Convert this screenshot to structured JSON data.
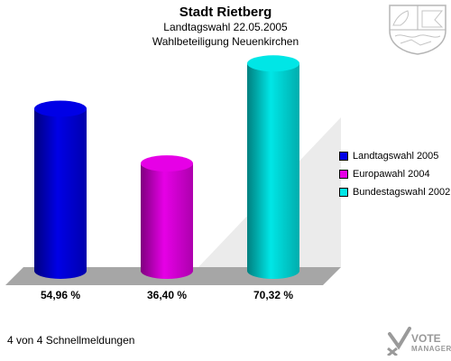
{
  "header": {
    "title": "Stadt Rietberg",
    "subtitle1": "Landtagswahl 22.05.2005",
    "subtitle2": "Wahlbeteiligung Neuenkirchen"
  },
  "chart_data": {
    "type": "bar",
    "categories": [
      "Landtagswahl 2005",
      "Europawahl 2004",
      "Bundestagswahl 2002"
    ],
    "values": [
      54.96,
      36.4,
      70.32
    ],
    "value_labels": [
      "54,96 %",
      "36,40 %",
      "70,32 %"
    ],
    "colors": [
      "#0000e6",
      "#e600e6",
      "#00e6e6"
    ],
    "ylim": [
      0,
      75
    ],
    "legend_position": "right"
  },
  "footer": {
    "text": "4 von 4 Schnellmeldungen"
  },
  "logo": {
    "line1": "VOTE",
    "line2": "MANAGER"
  }
}
